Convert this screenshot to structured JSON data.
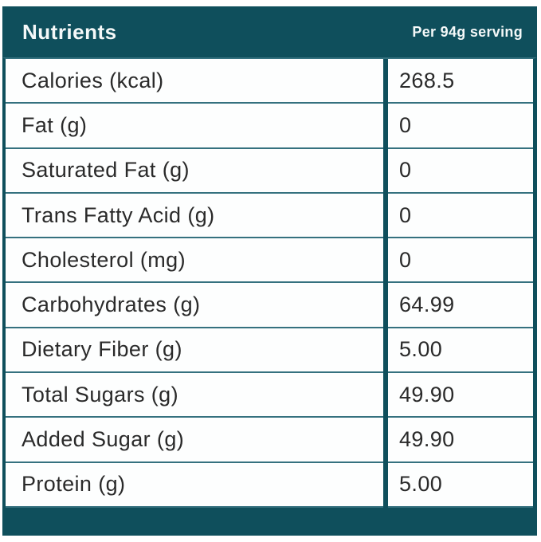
{
  "header": {
    "title": "Nutrients",
    "serving_label": "Per 94g serving"
  },
  "rows": [
    {
      "label": "Calories (kcal)",
      "value": "268.5"
    },
    {
      "label": "Fat (g)",
      "value": "0"
    },
    {
      "label": "Saturated Fat (g)",
      "value": "0"
    },
    {
      "label": "Trans Fatty Acid (g)",
      "value": "0"
    },
    {
      "label": "Cholesterol (mg)",
      "value": "0"
    },
    {
      "label": "Carbohydrates (g)",
      "value": "64.99"
    },
    {
      "label": "Dietary Fiber (g)",
      "value": "5.00"
    },
    {
      "label": "Total Sugars (g)",
      "value": "49.90"
    },
    {
      "label": "Added Sugar (g)",
      "value": "49.90"
    },
    {
      "label": "Protein (g)",
      "value": "5.00"
    }
  ],
  "colors": {
    "header_bg": "#0f4f5c",
    "footer_bg": "#0f4f5c",
    "column_divider": "#0f4f5c",
    "row_border": "#35717f",
    "row_bg": "#fdfefe",
    "text": "#2a2a2a",
    "header_text": "#f4f8f8"
  }
}
